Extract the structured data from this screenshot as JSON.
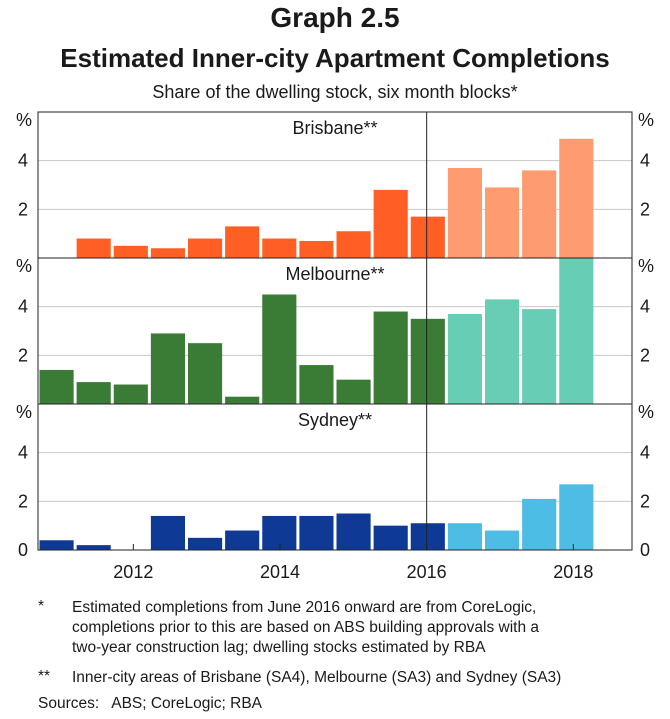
{
  "header": {
    "graph_number": "Graph 2.5",
    "title": "Estimated Inner-city Apartment Completions",
    "subtitle": "Share of the dwelling stock, six month blocks*"
  },
  "chart_data": {
    "type": "bar",
    "unit_label": "%",
    "x_range": [
      2010.7,
      2018.8
    ],
    "x_ticks": [
      2012,
      2014,
      2016,
      2018
    ],
    "x_tick_labels": [
      "2012",
      "2014",
      "2016",
      "2018"
    ],
    "split_at": 2016,
    "panels": [
      {
        "name": "Brisbane**",
        "ylim": [
          0,
          6
        ],
        "y_ticks": [
          2,
          4
        ],
        "y_tick_labels": [
          "2",
          "4"
        ],
        "color_before": "#ff5f25",
        "color_after": "#fe9b70",
        "periods": [
          "2010-H2",
          "2011-H1",
          "2011-H2",
          "2012-H1",
          "2012-H2",
          "2013-H1",
          "2013-H2",
          "2014-H1",
          "2014-H2",
          "2015-H1",
          "2015-H2",
          "2016-H1",
          "2016-H2",
          "2017-H1",
          "2017-H2",
          "2018-H1"
        ],
        "values": [
          0,
          0.8,
          0.5,
          0.4,
          0.8,
          1.3,
          0.8,
          0.7,
          1.1,
          2.8,
          1.7,
          3.7,
          2.9,
          3.6,
          4.9,
          0
        ]
      },
      {
        "name": "Melbourne**",
        "ylim": [
          0,
          6
        ],
        "y_ticks": [
          2,
          4
        ],
        "y_tick_labels": [
          "2",
          "4"
        ],
        "color_before": "#3a7b35",
        "color_after": "#68cdb5",
        "periods": [
          "2010-H2",
          "2011-H1",
          "2011-H2",
          "2012-H1",
          "2012-H2",
          "2013-H1",
          "2013-H2",
          "2014-H1",
          "2014-H2",
          "2015-H1",
          "2015-H2",
          "2016-H1",
          "2016-H2",
          "2017-H1",
          "2017-H2",
          "2018-H1"
        ],
        "values": [
          1.4,
          0.9,
          0.8,
          2.9,
          2.5,
          0.3,
          4.5,
          1.6,
          1.0,
          3.8,
          3.5,
          3.7,
          4.3,
          3.9,
          6.0,
          0
        ]
      },
      {
        "name": "Sydney**",
        "ylim": [
          0,
          6
        ],
        "y_ticks": [
          0,
          2,
          4
        ],
        "y_tick_labels": [
          "0",
          "2",
          "4"
        ],
        "color_before": "#0e3a96",
        "color_after": "#4ebde6",
        "periods": [
          "2010-H2",
          "2011-H1",
          "2011-H2",
          "2012-H1",
          "2012-H2",
          "2013-H1",
          "2013-H2",
          "2014-H1",
          "2014-H2",
          "2015-H1",
          "2015-H2",
          "2016-H1",
          "2016-H2",
          "2017-H1",
          "2017-H2",
          "2018-H1"
        ],
        "values": [
          0.4,
          0.2,
          0,
          1.4,
          0.5,
          0.8,
          1.4,
          1.4,
          1.5,
          1.0,
          1.1,
          1.1,
          0.8,
          2.1,
          2.7,
          0
        ]
      }
    ]
  },
  "notes": {
    "star_mark": "*",
    "star_lines": [
      "Estimated completions from June 2016 onward are from CoreLogic,",
      "completions prior to this are based on ABS building approvals with a",
      "two-year construction lag; dwelling stocks estimated by RBA"
    ],
    "double_star_mark": "**",
    "double_star_text": "Inner-city areas of Brisbane (SA4), Melbourne (SA3) and Sydney (SA3)",
    "sources": "Sources:   ABS; CoreLogic; RBA"
  }
}
